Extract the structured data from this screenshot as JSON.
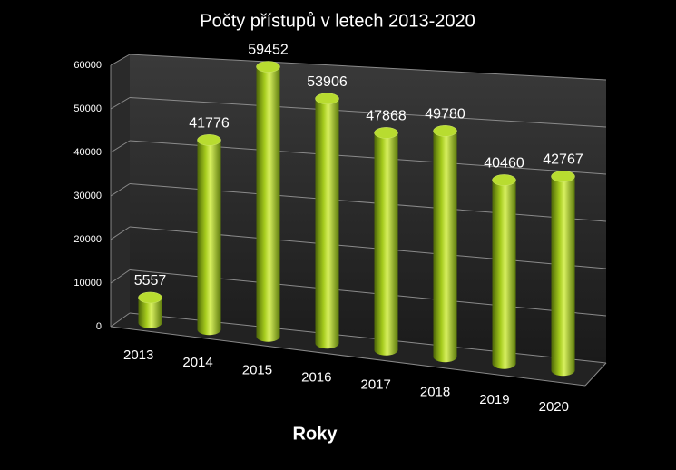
{
  "chart_data": {
    "type": "bar",
    "title": "Počty přístupů v letech 2013-2020",
    "x_label": "Roky",
    "categories": [
      "2013",
      "2014",
      "2015",
      "2016",
      "2017",
      "2018",
      "2019",
      "2020"
    ],
    "values": [
      5557,
      41776,
      59452,
      53906,
      47868,
      49780,
      40460,
      42767
    ],
    "color": "#a6cc1e",
    "ylim": [
      0,
      60000
    ],
    "yticks": [
      0,
      10000,
      20000,
      30000,
      40000,
      50000,
      60000
    ],
    "grid": true
  }
}
